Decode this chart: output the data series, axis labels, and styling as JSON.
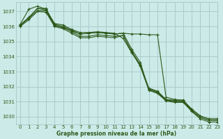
{
  "title": "Graphe pression niveau de la mer (hPa)",
  "bg_color": "#cceae7",
  "grid_color": "#aacccc",
  "line_color": "#2d5a1b",
  "marker_color": "#2d5a1b",
  "xlim": [
    -0.5,
    23
  ],
  "ylim": [
    1029.5,
    1037.6
  ],
  "yticks": [
    1030,
    1031,
    1032,
    1033,
    1034,
    1035,
    1036,
    1037
  ],
  "xticks": [
    0,
    1,
    2,
    3,
    4,
    5,
    6,
    7,
    8,
    9,
    10,
    11,
    12,
    13,
    14,
    15,
    16,
    17,
    18,
    19,
    20,
    21,
    22,
    23
  ],
  "series": [
    [
      1036.1,
      1036.6,
      1037.2,
      1037.2,
      1036.1,
      1035.9,
      1035.7,
      1035.5,
      1035.55,
      1035.6,
      1035.55,
      1035.5,
      1035.55,
      1034.5,
      1033.6,
      1031.8,
      1031.6,
      1031.1,
      1031.05,
      1031.05,
      1030.5,
      1030.05,
      1029.85,
      1029.85
    ],
    [
      1036.15,
      1037.15,
      1037.35,
      1037.15,
      1036.2,
      1036.1,
      1035.8,
      1035.6,
      1035.6,
      1035.65,
      1035.6,
      1035.55,
      1035.2,
      1034.25,
      1033.4,
      1031.9,
      1031.7,
      1031.15,
      1031.1,
      1031.1,
      1030.4,
      1029.95,
      1029.75,
      1029.75
    ],
    [
      1036.05,
      1036.55,
      1037.05,
      1037.05,
      1036.05,
      1035.95,
      1035.65,
      1035.35,
      1035.35,
      1035.45,
      1035.4,
      1035.35,
      1035.4,
      1034.35,
      1033.45,
      1031.85,
      1031.65,
      1031.1,
      1031.0,
      1031.0,
      1030.4,
      1029.95,
      1029.75,
      1029.75
    ],
    [
      1036.0,
      1036.45,
      1037.0,
      1036.95,
      1036.0,
      1035.85,
      1035.55,
      1035.25,
      1035.25,
      1035.35,
      1035.3,
      1035.25,
      1035.4,
      1034.3,
      1033.35,
      1031.75,
      1031.55,
      1031.05,
      1030.95,
      1030.95,
      1030.35,
      1029.85,
      1029.65,
      1029.65
    ]
  ],
  "series_special": [
    1036.1,
    1036.6,
    1037.2,
    1037.1,
    1036.15,
    1036.0,
    1035.75,
    1035.5,
    1035.55,
    1035.6,
    1035.55,
    1035.5,
    1035.55,
    1035.5,
    1035.5,
    1035.45,
    1035.45,
    1031.3,
    1031.15,
    1031.1,
    1030.5,
    1030.05,
    1029.85,
    1029.85
  ]
}
